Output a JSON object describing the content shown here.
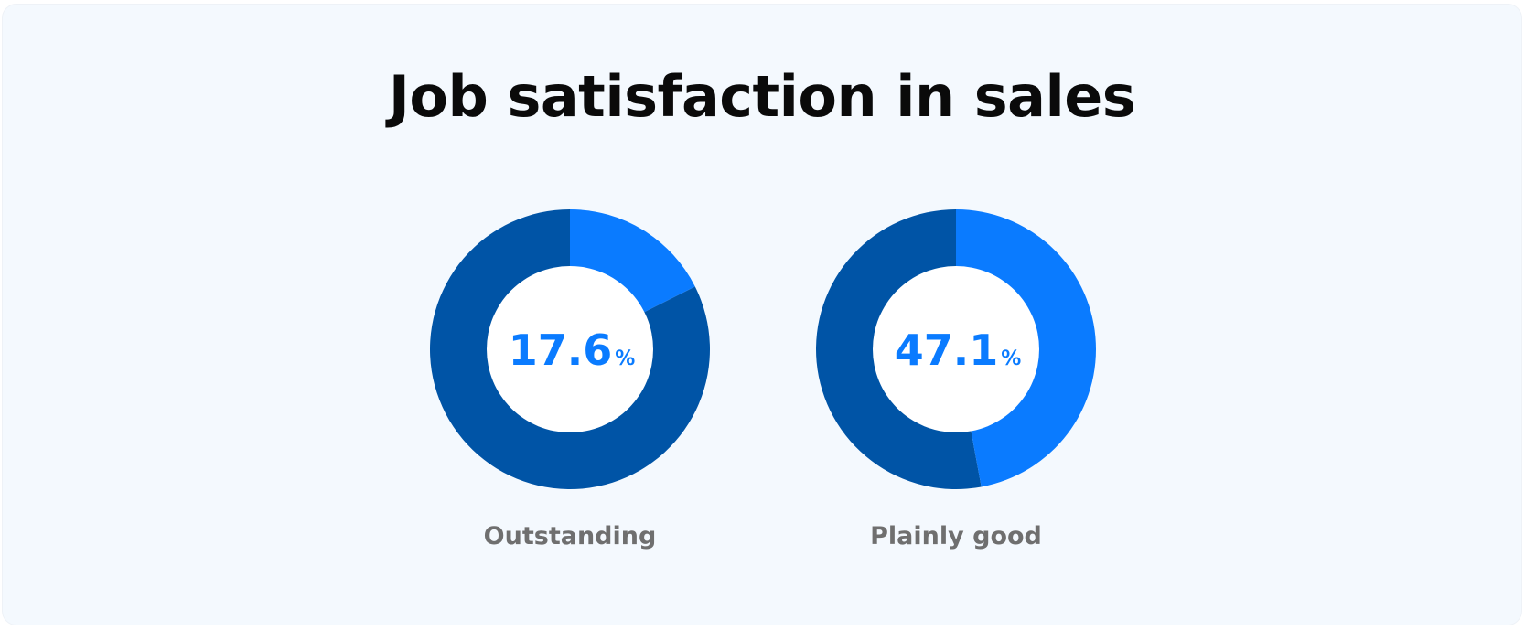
{
  "chart_data": {
    "type": "pie",
    "title": "Job satisfaction in sales",
    "unit": "%",
    "series": [
      {
        "name": "Outstanding",
        "value": 17.6,
        "display": "17.6"
      },
      {
        "name": "Plainly good",
        "value": 47.1,
        "display": "47.1"
      }
    ],
    "colors": {
      "highlight": "#0a7bff",
      "remainder": "#0054a6",
      "center": "#ffffff",
      "label": "#6f6f6f",
      "background": "#f4f9fe"
    }
  }
}
